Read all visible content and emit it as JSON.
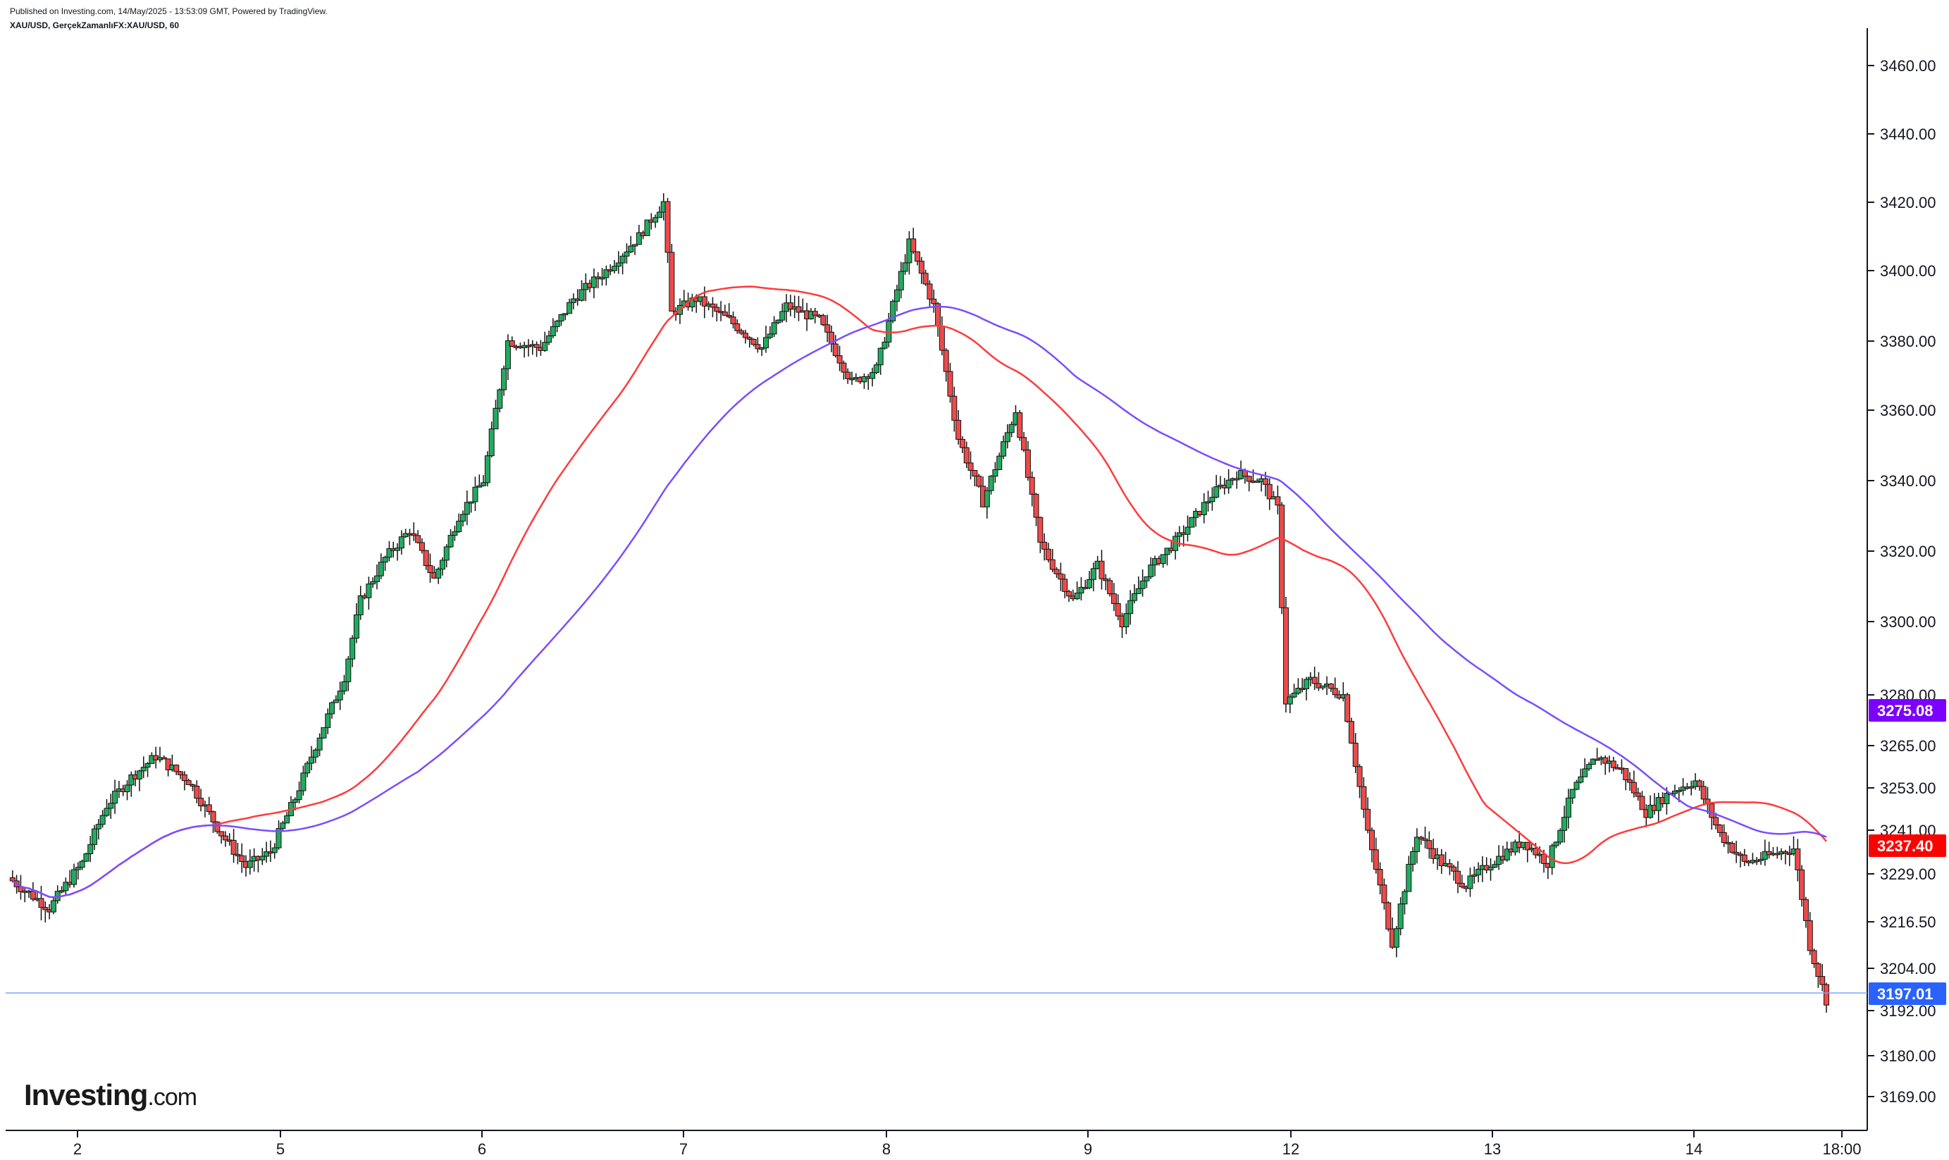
{
  "header": {
    "published": "Published on Investing.com, 14/May/2025 - 13:53:09 GMT, Powered by TradingView.",
    "symbol": "XAU/USD, GerçekZamanlıFX:XAU/USD, 60"
  },
  "logo": {
    "brand": "Investing",
    "suffix": ".com"
  },
  "colors": {
    "up": "#26a69a",
    "up_fill": "#22ab5f",
    "down": "#ef5350",
    "down_fill": "#ee4a4a",
    "ma_fast": "#ff3b3b",
    "ma_slow": "#7b4dff",
    "last_line": "#7aa6ff",
    "axis": "#131722"
  },
  "chart_data": {
    "type": "candlestick",
    "y_axis_ticks": [
      "3460.00",
      "3440.00",
      "3420.00",
      "3400.00",
      "3380.00",
      "3360.00",
      "3340.00",
      "3320.00",
      "3300.00",
      "3280.00",
      "3265.00",
      "3253.00",
      "3241.00",
      "3229.00",
      "3216.50",
      "3204.00",
      "3192.00",
      "3180.00",
      "3169.00"
    ],
    "x_axis_ticks": [
      "2",
      "5",
      "6",
      "7",
      "8",
      "9",
      "12",
      "13",
      "14",
      "18:00"
    ],
    "price_badges": [
      {
        "label": "3275.08",
        "color": "#7b00ff"
      },
      {
        "label": "3237.40",
        "color": "#ff0000"
      },
      {
        "label": "3197.01",
        "color": "#2962ff"
      }
    ],
    "last_price": 3197.01,
    "series": [
      {
        "name": "",
        "kind": "moving_average_fast"
      },
      {
        "name": "",
        "kind": "moving_average_slow"
      }
    ]
  }
}
